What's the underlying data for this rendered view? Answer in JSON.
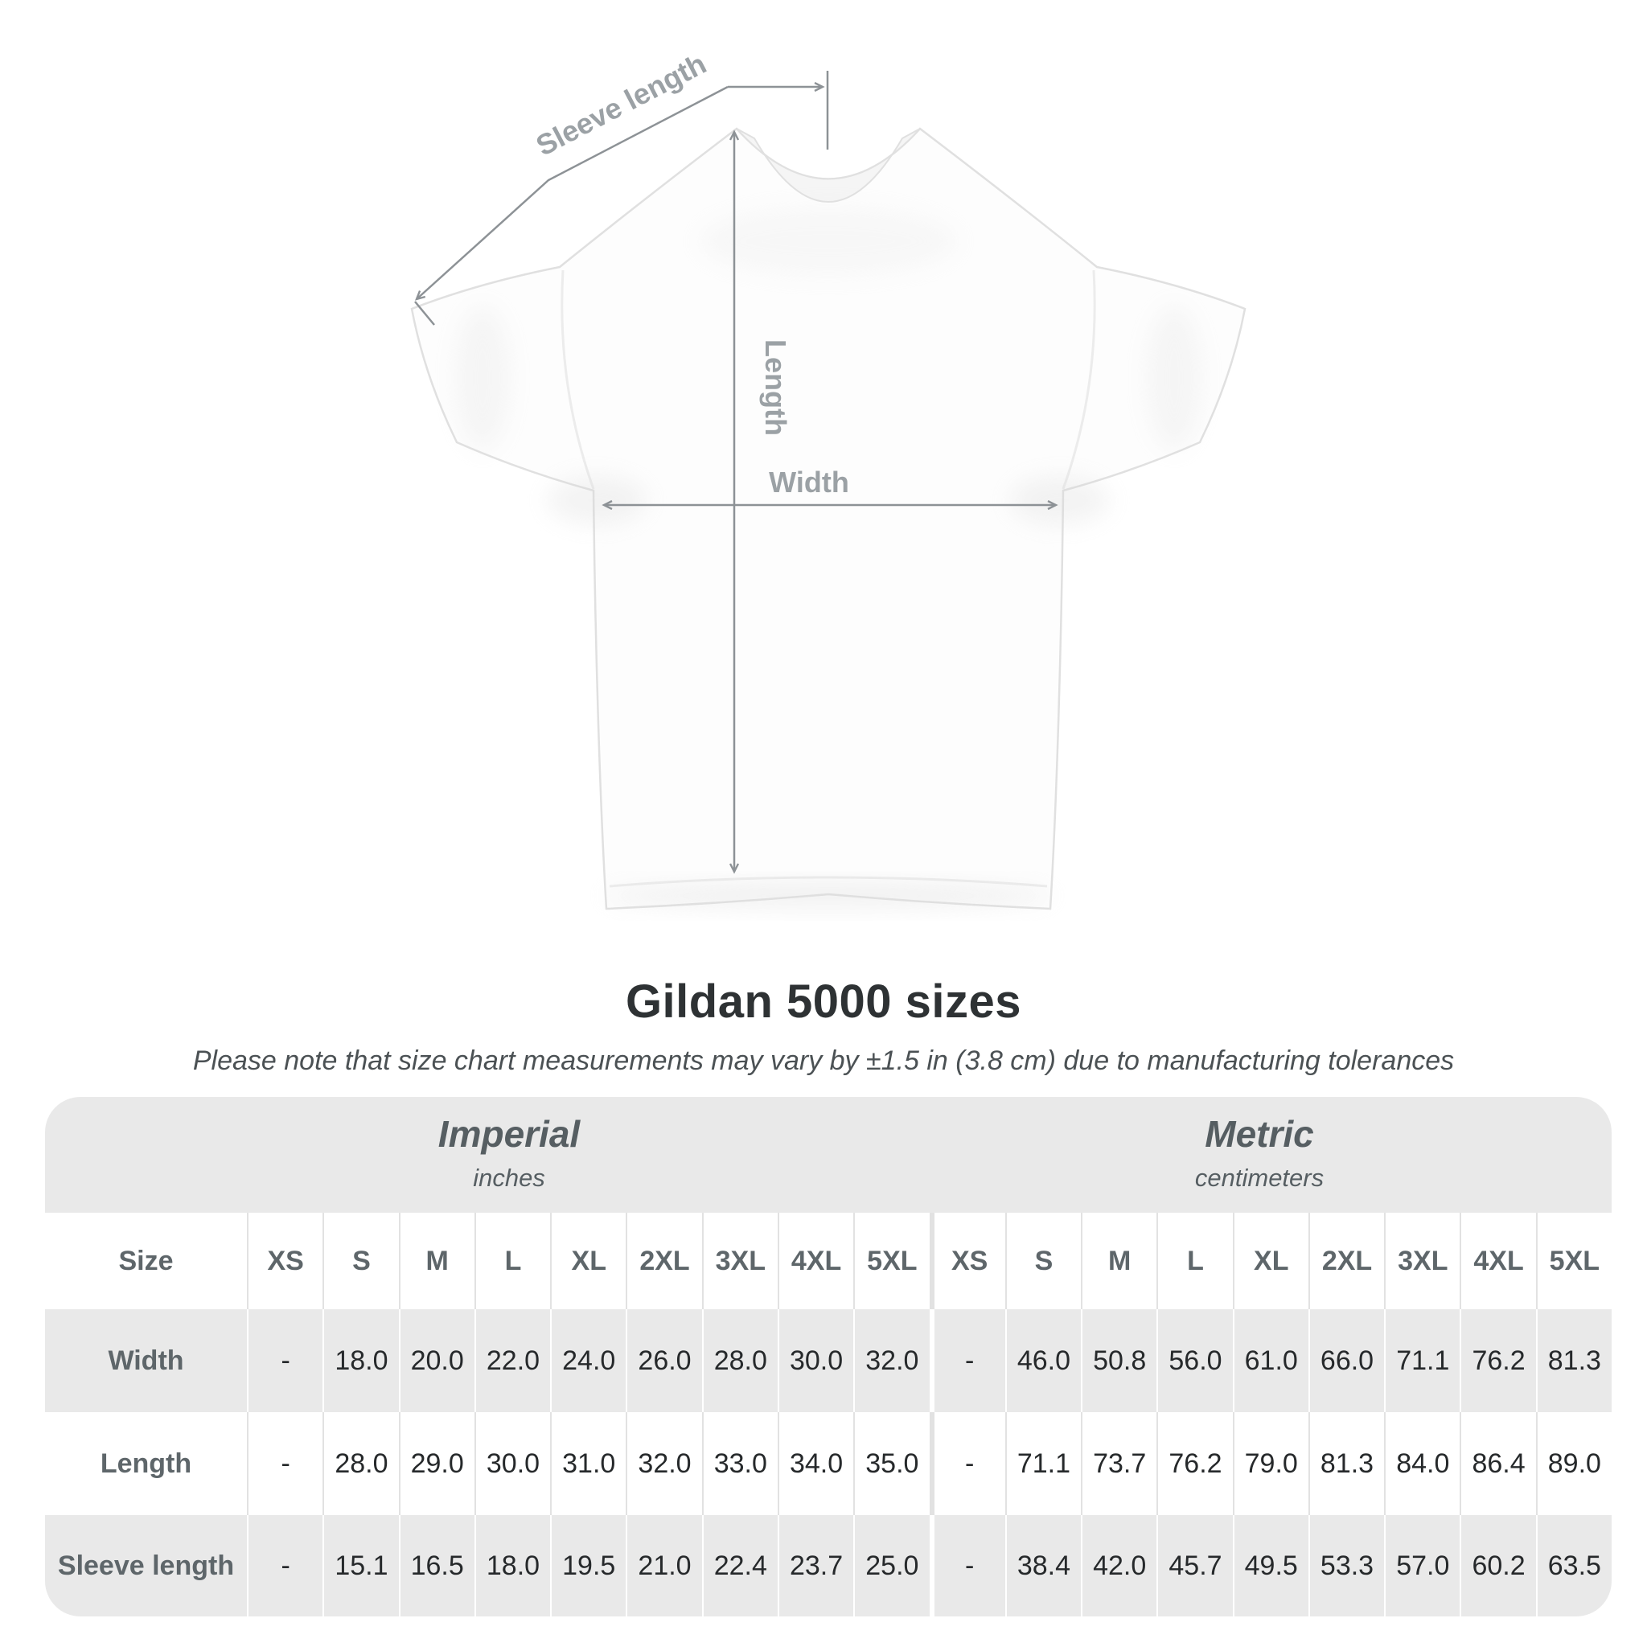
{
  "diagram": {
    "sleeve_label": "Sleeve length",
    "length_label": "Length",
    "width_label": "Width",
    "line_color": "#8d9296",
    "label_color": "#9ba1a5",
    "shirt_color": "#fdfdfd"
  },
  "title": "Gildan 5000 sizes",
  "subtitle": "Please note that size chart measurements may vary by ±1.5 in (3.8 cm) due to manufacturing tolerances",
  "chart_data": {
    "type": "table",
    "title": "Gildan 5000 sizes",
    "size_header": "Size",
    "sections": [
      {
        "label": "Imperial",
        "unit": "inches"
      },
      {
        "label": "Metric",
        "unit": "centimeters"
      }
    ],
    "sizes": [
      "XS",
      "S",
      "M",
      "L",
      "XL",
      "2XL",
      "3XL",
      "4XL",
      "5XL"
    ],
    "rows": [
      {
        "label": "Width",
        "imperial": [
          "-",
          "18.0",
          "20.0",
          "22.0",
          "24.0",
          "26.0",
          "28.0",
          "30.0",
          "32.0"
        ],
        "metric": [
          "-",
          "46.0",
          "50.8",
          "56.0",
          "61.0",
          "66.0",
          "71.1",
          "76.2",
          "81.3"
        ]
      },
      {
        "label": "Length",
        "imperial": [
          "-",
          "28.0",
          "29.0",
          "30.0",
          "31.0",
          "32.0",
          "33.0",
          "34.0",
          "35.0"
        ],
        "metric": [
          "-",
          "71.1",
          "73.7",
          "76.2",
          "79.0",
          "81.3",
          "84.0",
          "86.4",
          "89.0"
        ]
      },
      {
        "label": "Sleeve length",
        "imperial": [
          "-",
          "15.1",
          "16.5",
          "18.0",
          "19.5",
          "21.0",
          "22.4",
          "23.7",
          "25.0"
        ],
        "metric": [
          "-",
          "38.4",
          "42.0",
          "45.7",
          "49.5",
          "53.3",
          "57.0",
          "60.2",
          "63.5"
        ]
      }
    ]
  },
  "colors": {
    "stripe_gray": "#e9e9e9",
    "header_text": "#5e666a",
    "data_text": "#26292b",
    "title_text": "#2e3234"
  }
}
